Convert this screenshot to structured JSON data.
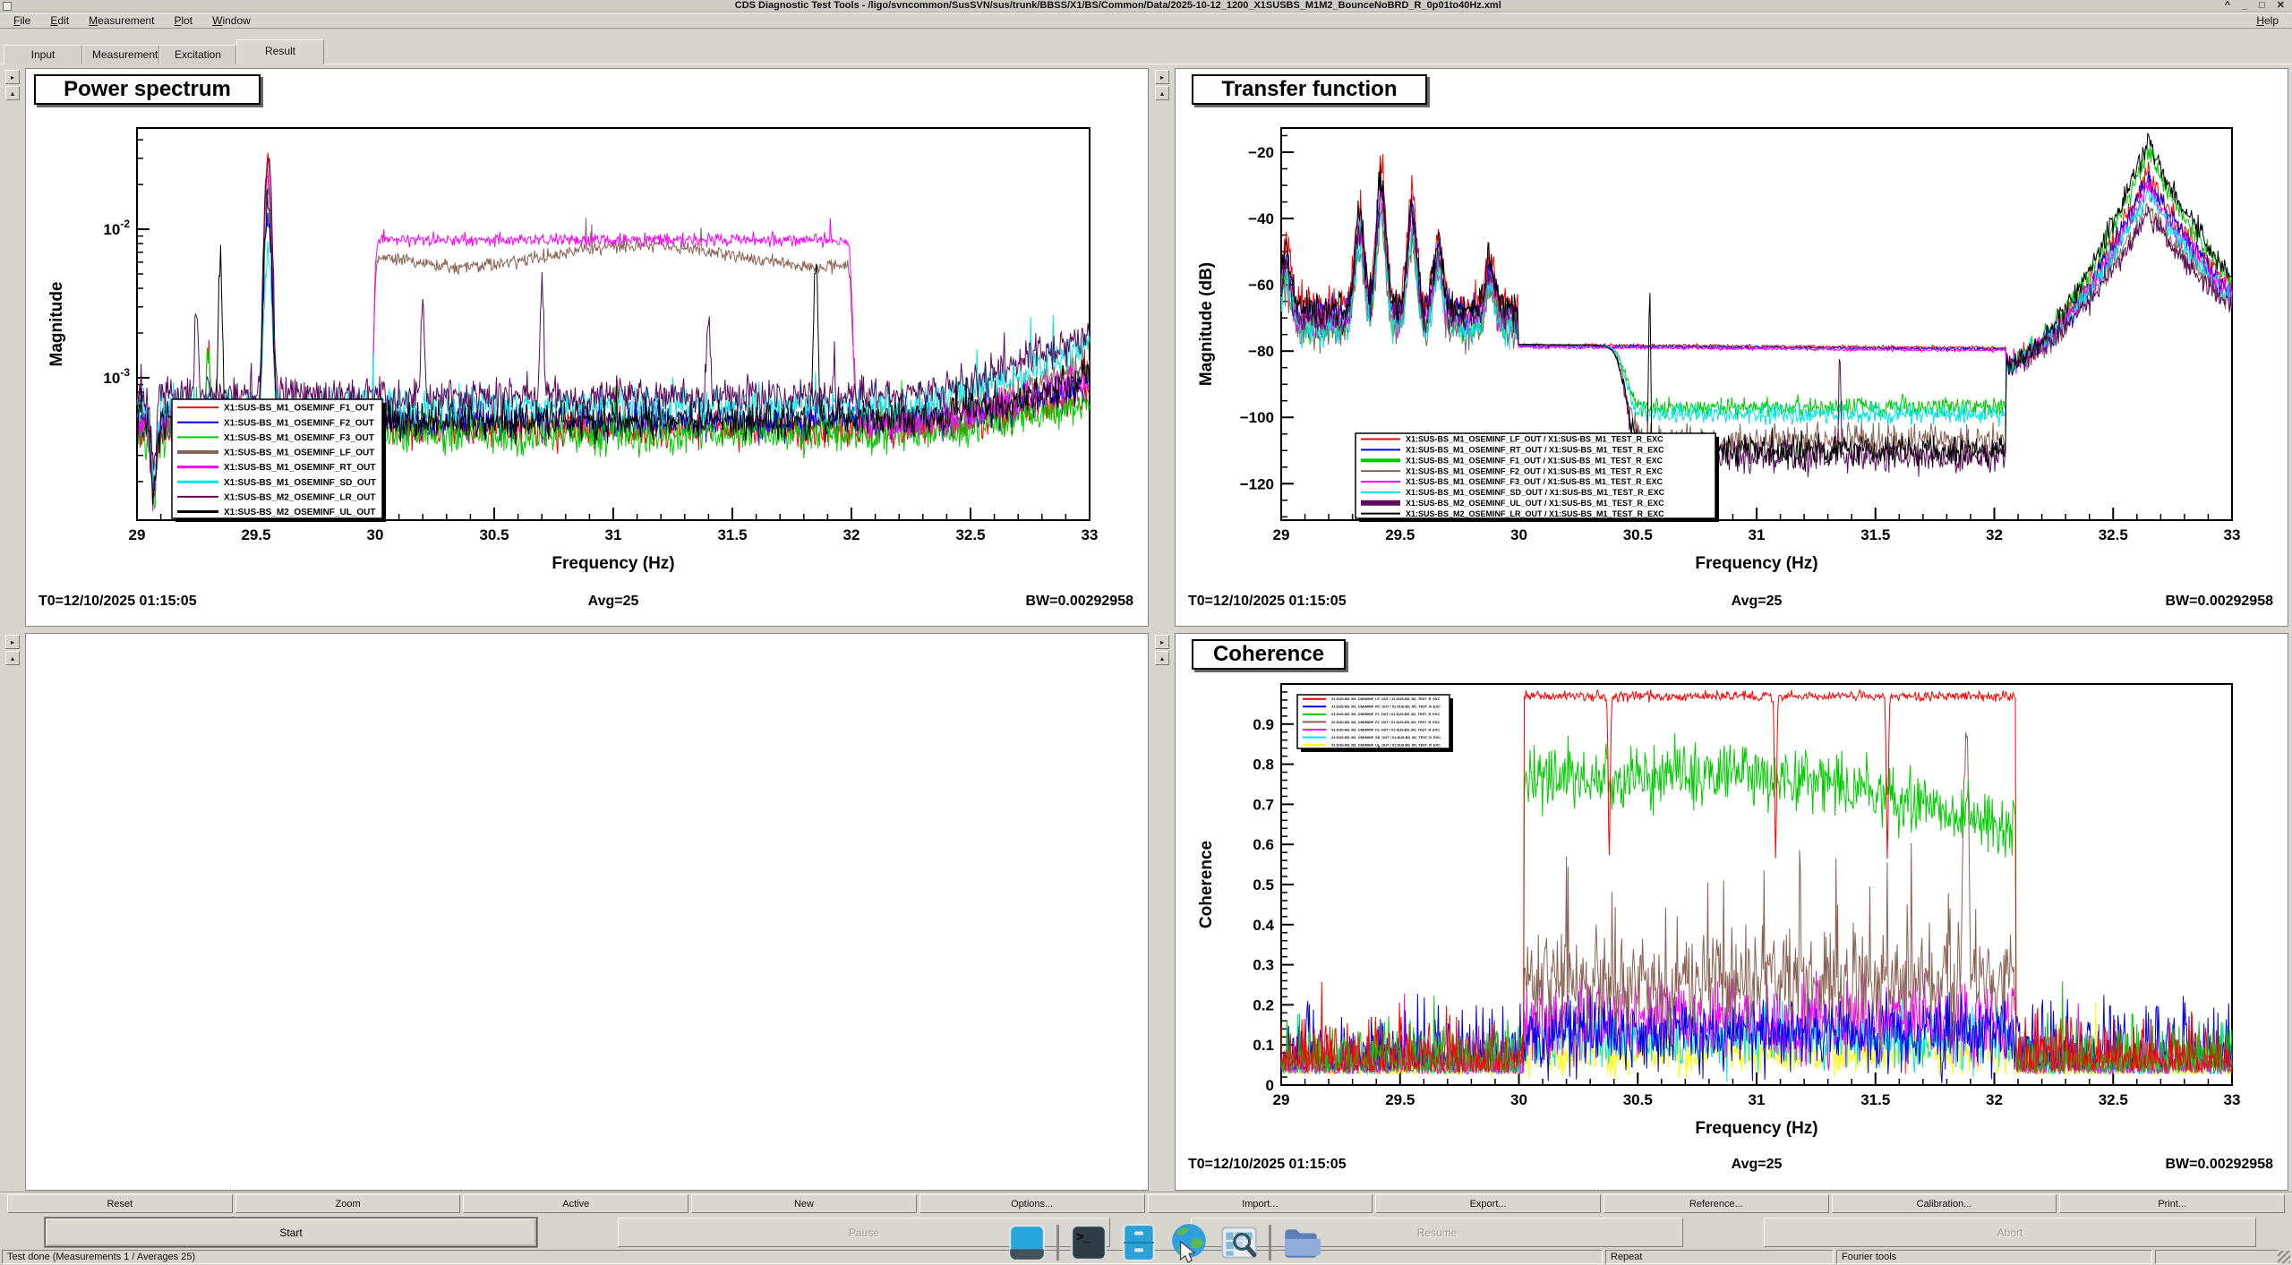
{
  "window": {
    "title": "CDS Diagnostic Test Tools - /ligo/svncommon/SusSVN/sus/trunk/BBSS/X1/BS/Common/Data/2025-10-12_1200_X1SUSBS_M1M2_BounceNoBRD_R_0p01to40Hz.xml",
    "controls": {
      "shade": "^",
      "minimize": "_",
      "maximize": "□",
      "close": "✕"
    }
  },
  "menubar": {
    "items": [
      "File",
      "Edit",
      "Measurement",
      "Plot",
      "Window"
    ],
    "help": "Help"
  },
  "tabs": {
    "items": [
      "Input",
      "Measurement",
      "Excitation",
      "Result"
    ],
    "active": "Result"
  },
  "icons": {
    "scroll_right": "▸",
    "scroll_up": "▴"
  },
  "toolbar": {
    "buttons": [
      "Reset",
      "Zoom",
      "Active",
      "New",
      "Options...",
      "Import...",
      "Export...",
      "Reference...",
      "Calibration...",
      "Print..."
    ]
  },
  "controls": {
    "start": "Start",
    "pause": "Pause",
    "resume": "Resume",
    "abort": "Abort"
  },
  "statusbar": {
    "message": "Test done (Measurements 1 / Averages 25)",
    "repeat": "Repeat",
    "tool": "Fourier tools"
  },
  "taskbar": {
    "icons": [
      "desktop-monitor",
      "terminal",
      "file-cabinet",
      "web-globe",
      "screen-magnifier",
      "file-manager-folder"
    ]
  },
  "chart_data": [
    {
      "id": "power_spectrum",
      "type": "line",
      "title": "Power spectrum",
      "xlabel": "Frequency (Hz)",
      "ylabel": "Magnitude",
      "xlim": [
        29,
        33
      ],
      "x_ticks": [
        29,
        29.5,
        30,
        30.5,
        31,
        31.5,
        32,
        32.5,
        33
      ],
      "y_scale": "log",
      "ylim": [
        0.00011,
        0.048
      ],
      "y_ticks": [
        {
          "v": 0.01,
          "exp": "-2"
        },
        {
          "v": 0.001,
          "exp": "-3"
        }
      ],
      "grid": false,
      "legend_position": "bottom-left",
      "excitation_band": [
        30,
        32
      ],
      "footer": {
        "t0": "T0=12/10/2025 01:15:05",
        "avg": "Avg=25",
        "bw": "BW=0.00292958"
      },
      "series": [
        {
          "name": "X1:SUS-BS_M1_OSEMINF_F1_OUT",
          "color": "#ff0000",
          "base": 0.00045,
          "peaks": [
            [
              29.3,
              0.0018
            ],
            [
              29.55,
              0.026
            ]
          ],
          "end": 0.0008,
          "legend_lw": 2
        },
        {
          "name": "X1:SUS-BS_M1_OSEMINF_F2_OUT",
          "color": "#0000ee",
          "base": 0.0005,
          "peaks": [
            [
              29.3,
              0.0012
            ],
            [
              29.55,
              0.012
            ]
          ],
          "end": 0.0009,
          "legend_lw": 2
        },
        {
          "name": "X1:SUS-BS_M1_OSEMINF_F3_OUT",
          "color": "#00cc00",
          "base": 0.00042,
          "peaks": [
            [
              29.3,
              0.0015
            ],
            [
              29.55,
              0.017
            ]
          ],
          "end": 0.0007,
          "legend_lw": 2
        },
        {
          "name": "X1:SUS-BS_M1_OSEMINF_LF_OUT",
          "color": "#8a6253",
          "base": 0.0005,
          "band_level": 0.0078,
          "band_mod": 1,
          "peaks": [
            [
              29.55,
              0.02
            ]
          ],
          "end": 0.0012,
          "legend_lw": 4
        },
        {
          "name": "X1:SUS-BS_M1_OSEMINF_RT_OUT",
          "color": "#ff00ff",
          "base": 0.0005,
          "band_level": 0.0085,
          "peaks": [
            [
              29.55,
              0.022
            ]
          ],
          "end": 0.001,
          "legend_lw": 3
        },
        {
          "name": "X1:SUS-BS_M1_OSEMINF_SD_OUT",
          "color": "#00e5e5",
          "base": 0.00065,
          "peaks": [
            [
              29.55,
              0.007
            ]
          ],
          "end": 0.0016,
          "legend_lw": 3
        },
        {
          "name": "X1:SUS-BS_M2_OSEMINF_LR_OUT",
          "color": "#5c0a5c",
          "base": 0.00075,
          "peaks": [
            [
              29.25,
              0.0028
            ],
            [
              29.55,
              0.03
            ],
            [
              30.2,
              0.003
            ],
            [
              30.7,
              0.0042
            ],
            [
              31.4,
              0.0026
            ]
          ],
          "end": 0.0019,
          "legend_lw": 2
        },
        {
          "name": "X1:SUS-BS_M2_OSEMINF_UL_OUT",
          "color": "#000000",
          "base": 0.00052,
          "peaks": [
            [
              29.35,
              0.006
            ],
            [
              29.55,
              0.014
            ],
            [
              31.85,
              0.0062
            ]
          ],
          "end": 0.001,
          "legend_lw": 3
        }
      ]
    },
    {
      "id": "transfer_function",
      "type": "line",
      "title": "Transfer function",
      "xlabel": "Frequency (Hz)",
      "ylabel": "Magnitude (dB)",
      "xlim": [
        29,
        33
      ],
      "x_ticks": [
        29,
        29.5,
        30,
        30.5,
        31,
        31.5,
        32,
        32.5,
        33
      ],
      "y_scale": "linear",
      "ylim": [
        -131,
        -12.7
      ],
      "y_ticks": [
        -20,
        -40,
        -60,
        -80,
        -100,
        -120
      ],
      "y_minor_step": 5,
      "grid": false,
      "legend_position": "bottom-left",
      "excitation_band": [
        30,
        32.05
      ],
      "flat_response_db": -78,
      "left_base": -66,
      "left_peaks": [
        [
          29.02,
          -48
        ],
        [
          29.33,
          -36
        ],
        [
          29.42,
          -24
        ],
        [
          29.55,
          -33
        ],
        [
          29.66,
          -46
        ],
        [
          29.88,
          -51
        ]
      ],
      "right_peak": [
        32.65,
        -16
      ],
      "right_end": -58,
      "footer": {
        "t0": "T0=12/10/2025 01:15:05",
        "avg": "Avg=25",
        "bw": "BW=0.00292958"
      },
      "series": [
        {
          "name": "X1:SUS-BS_M1_OSEMINF_LF_OUT / X1:SUS-BS_M1_TEST_R_EXC",
          "color": "#ff0000",
          "mode": "flat",
          "flat_off": 0,
          "a_off": 0,
          "c_off": 10,
          "legend_lw": 2
        },
        {
          "name": "X1:SUS-BS_M1_OSEMINF_RT_OUT / X1:SUS-BS_M1_TEST_R_EXC",
          "color": "#0000ee",
          "mode": "flat",
          "flat_off": -0.4,
          "a_off": 3,
          "c_off": 12,
          "legend_lw": 2
        },
        {
          "name": "X1:SUS-BS_M1_OSEMINF_F1_OUT / X1:SUS-BS_M1_TEST_R_EXC",
          "color": "#00cc00",
          "mode": "low",
          "level": -97,
          "lnoise": 3,
          "a_off": 6,
          "c_off": 3,
          "legend_lw": 4
        },
        {
          "name": "X1:SUS-BS_M1_OSEMINF_F2_OUT / X1:SUS-BS_M1_TEST_R_EXC",
          "color": "#8a6253",
          "mode": "low",
          "level": -107,
          "lnoise": 5,
          "a_off": 8,
          "c_off": 20,
          "legend_lw": 2
        },
        {
          "name": "X1:SUS-BS_M1_OSEMINF_F3_OUT / X1:SUS-BS_M1_TEST_R_EXC",
          "color": "#ff00ff",
          "mode": "flat",
          "flat_off": -0.8,
          "a_off": 5,
          "c_off": 14,
          "legend_lw": 2
        },
        {
          "name": "X1:SUS-BS_M1_OSEMINF_SD_OUT / X1:SUS-BS_M1_TEST_R_EXC",
          "color": "#00e5e5",
          "mode": "low",
          "level": -99,
          "lnoise": 3,
          "a_off": 7,
          "c_off": 16,
          "legend_lw": 2
        },
        {
          "name": "X1:SUS-BS_M2_OSEMINF_UL_OUT / X1:SUS-BS_M1_TEST_R_EXC",
          "color": "#5c0a5c",
          "mode": "low",
          "level": -112,
          "lnoise": 5,
          "a_off": 4,
          "c_off": 22,
          "spikes": [
            [
              31.35,
              -80
            ]
          ],
          "legend_lw": 6
        },
        {
          "name": "X1:SUS-BS_M2_OSEMINF_LR_OUT / X1:SUS-BS_M1_TEST_R_EXC",
          "color": "#000000",
          "mode": "low",
          "level": -110,
          "lnoise": 5,
          "a_off": 1,
          "c_off": 0,
          "spikes": [
            [
              30.55,
              -62
            ]
          ],
          "legend_lw": 2
        }
      ]
    },
    {
      "id": "coherence",
      "type": "line",
      "title": "Coherence",
      "xlabel": "Frequency (Hz)",
      "ylabel": "Coherence",
      "xlim": [
        29,
        33
      ],
      "x_ticks": [
        29,
        29.5,
        30,
        30.5,
        31,
        31.5,
        32,
        32.5,
        33
      ],
      "y_scale": "linear",
      "ylim": [
        0,
        1
      ],
      "y_ticks": [
        0,
        0.1,
        0.2,
        0.3,
        0.4,
        0.5,
        0.6,
        0.7,
        0.8,
        0.9
      ],
      "y_minor_step": 0.02,
      "grid": false,
      "legend_position": "top-left",
      "excitation_band": [
        30.02,
        32.09
      ],
      "footer": {
        "t0": "T0=12/10/2025 01:15:05",
        "avg": "Avg=25",
        "bw": "BW=0.00292958"
      },
      "series": [
        {
          "name": "X1:SUS-BS_M1_OSEMINF_LF_OUT / X1:SUS-BS_M1_TEST_R_EXC",
          "color": "#ff0000",
          "level": 0.97,
          "noise": 0.012,
          "out": 0.07,
          "dips": [
            30.38,
            31.08,
            31.55
          ]
        },
        {
          "name": "X1:SUS-BS_M1_OSEMINF_RT_OUT / X1:SUS-BS_M1_TEST_R_EXC",
          "color": "#0000ee",
          "level": 0.13,
          "noise": 0.09,
          "out": 0.09
        },
        {
          "name": "X1:SUS-BS_M1_OSEMINF_F1_OUT / X1:SUS-BS_M1_TEST_R_EXC",
          "color": "#00cc00",
          "level": 0.77,
          "noise": 0.08,
          "out": 0.07,
          "decline": true
        },
        {
          "name": "X1:SUS-BS_M1_OSEMINF_F2_OUT / X1:SUS-BS_M1_TEST_R_EXC",
          "color": "#8a6253",
          "level": 0.26,
          "noise": 0.13,
          "out": 0.06,
          "spikes": [
            [
              31.88,
              0.62
            ]
          ],
          "spiky": true
        },
        {
          "name": "X1:SUS-BS_M1_OSEMINF_F3_OUT / X1:SUS-BS_M1_TEST_R_EXC",
          "color": "#ff00ff",
          "level": 0.16,
          "noise": 0.1,
          "out": 0.05
        },
        {
          "name": "X1:SUS-BS_M1_OSEMINF_SD_OUT / X1:SUS-BS_M1_TEST_R_EXC",
          "color": "#00e5e5",
          "level": 0.12,
          "noise": 0.08,
          "out": 0.05
        },
        {
          "name": "X1:SUS-BS_M2_OSEMINF_UL_OUT / X1:SUS-BS_M1_TEST_R_EXC",
          "color": "#ffff00",
          "level": 0.08,
          "noise": 0.05,
          "out": 0.04
        }
      ]
    }
  ]
}
